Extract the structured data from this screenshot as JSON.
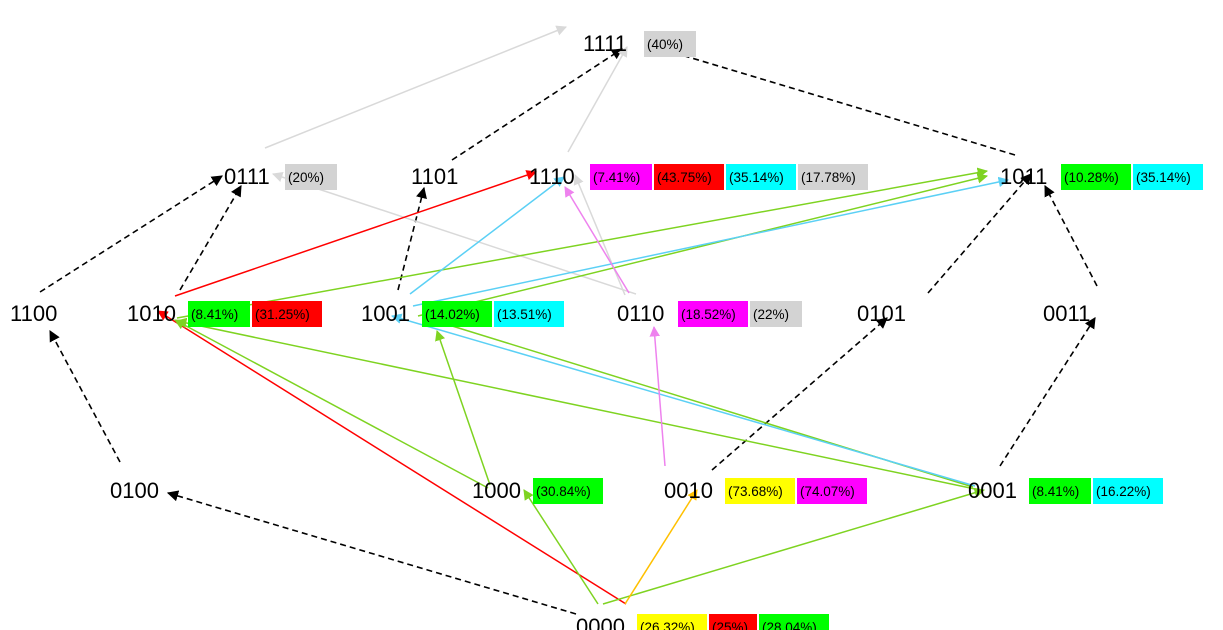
{
  "colors": {
    "black_dashed": "#000000",
    "gray": "#d9d9d9",
    "red": "#ff0000",
    "green": "#7ed321",
    "cyan": "#5bd0f5",
    "violet": "#ee82ee",
    "orange": "#ffc000",
    "badge_yellow": "#ffff00",
    "badge_red": "#ff0000",
    "badge_green": "#00ff00",
    "badge_magenta": "#ff00ff",
    "badge_cyan": "#00ffff",
    "badge_gray": "#d3d3d3"
  },
  "nodes": [
    {
      "id": "n1111",
      "label": "1111",
      "badges": [
        {
          "text": "(40%)",
          "color": "badge_gray"
        }
      ]
    },
    {
      "id": "n0111",
      "label": "0111",
      "badges": [
        {
          "text": "(20%)",
          "color": "badge_gray"
        }
      ]
    },
    {
      "id": "n1101",
      "label": "1101",
      "badges": []
    },
    {
      "id": "n1110",
      "label": "1110",
      "badges": [
        {
          "text": "(7.41%)",
          "color": "badge_magenta"
        },
        {
          "text": "(43.75%)",
          "color": "badge_red"
        },
        {
          "text": "(35.14%)",
          "color": "badge_cyan"
        },
        {
          "text": "(17.78%)",
          "color": "badge_gray"
        }
      ]
    },
    {
      "id": "n1011",
      "label": "1011",
      "badges": [
        {
          "text": "(10.28%)",
          "color": "badge_green"
        },
        {
          "text": "(35.14%)",
          "color": "badge_cyan"
        }
      ]
    },
    {
      "id": "n1100",
      "label": "1100",
      "badges": []
    },
    {
      "id": "n1010",
      "label": "1010",
      "badges": [
        {
          "text": "(8.41%)",
          "color": "badge_green"
        },
        {
          "text": "(31.25%)",
          "color": "badge_red"
        }
      ]
    },
    {
      "id": "n1001",
      "label": "1001",
      "badges": [
        {
          "text": "(14.02%)",
          "color": "badge_green"
        },
        {
          "text": "(13.51%)",
          "color": "badge_cyan"
        }
      ]
    },
    {
      "id": "n0110",
      "label": "0110",
      "badges": [
        {
          "text": "(18.52%)",
          "color": "badge_magenta"
        },
        {
          "text": "(22%)",
          "color": "badge_gray"
        }
      ]
    },
    {
      "id": "n0101",
      "label": "0101",
      "badges": []
    },
    {
      "id": "n0011",
      "label": "0011",
      "badges": []
    },
    {
      "id": "n0100",
      "label": "0100",
      "badges": []
    },
    {
      "id": "n1000",
      "label": "1000",
      "badges": [
        {
          "text": "(30.84%)",
          "color": "badge_green"
        }
      ]
    },
    {
      "id": "n0010",
      "label": "0010",
      "badges": [
        {
          "text": "(73.68%)",
          "color": "badge_yellow"
        },
        {
          "text": "(74.07%)",
          "color": "badge_magenta"
        }
      ]
    },
    {
      "id": "n0001",
      "label": "0001",
      "badges": [
        {
          "text": "(8.41%)",
          "color": "badge_green"
        },
        {
          "text": "(16.22%)",
          "color": "badge_cyan"
        }
      ]
    },
    {
      "id": "n0000",
      "label": "0000",
      "badges": [
        {
          "text": "(26.32%)",
          "color": "badge_yellow"
        },
        {
          "text": "(25%)",
          "color": "badge_red"
        },
        {
          "text": "(28.04%)",
          "color": "badge_green"
        }
      ]
    }
  ],
  "edges": [
    {
      "from": "n0000",
      "to": "n0100",
      "color": "black_dashed",
      "dashed": true
    },
    {
      "from": "n0100",
      "to": "n1100",
      "color": "black_dashed",
      "dashed": true
    },
    {
      "from": "n1100",
      "to": "n0111",
      "color": "black_dashed",
      "dashed": true
    },
    {
      "from": "n1010",
      "to": "n0111",
      "color": "black_dashed",
      "dashed": true
    },
    {
      "from": "n1001",
      "to": "n1101",
      "color": "black_dashed",
      "dashed": true
    },
    {
      "from": "n1101",
      "to": "n1111",
      "color": "black_dashed",
      "dashed": true
    },
    {
      "from": "n1011",
      "to": "n1111",
      "color": "black_dashed",
      "dashed": true
    },
    {
      "from": "n0010",
      "to": "n0101",
      "color": "black_dashed",
      "dashed": true
    },
    {
      "from": "n0101",
      "to": "n1011",
      "color": "black_dashed",
      "dashed": true
    },
    {
      "from": "n0001",
      "to": "n0011",
      "color": "black_dashed",
      "dashed": true
    },
    {
      "from": "n0011",
      "to": "n1011",
      "color": "black_dashed",
      "dashed": true
    },
    {
      "from": "n0111",
      "to": "n1111",
      "color": "gray",
      "dashed": false
    },
    {
      "from": "n1110",
      "to": "n1111",
      "color": "gray",
      "dashed": false
    },
    {
      "from": "n0110",
      "to": "n0111",
      "color": "gray",
      "dashed": false
    },
    {
      "from": "n0110",
      "to": "n1110",
      "color": "gray",
      "dashed": false
    },
    {
      "from": "n1010",
      "to": "n1110",
      "color": "red",
      "dashed": false
    },
    {
      "from": "n0000",
      "to": "n1010",
      "color": "red",
      "dashed": false
    },
    {
      "from": "n0000",
      "to": "n1000",
      "color": "green",
      "dashed": false
    },
    {
      "from": "n0000",
      "to": "n0001",
      "color": "green",
      "dashed": false
    },
    {
      "from": "n1000",
      "to": "n1010",
      "color": "green",
      "dashed": false
    },
    {
      "from": "n1000",
      "to": "n1001",
      "color": "green",
      "dashed": false
    },
    {
      "from": "n0001",
      "to": "n1010",
      "color": "green",
      "dashed": false
    },
    {
      "from": "n0001",
      "to": "n1001",
      "color": "green",
      "dashed": false
    },
    {
      "from": "n1010",
      "to": "n1011",
      "color": "green",
      "dashed": false
    },
    {
      "from": "n1001",
      "to": "n1011",
      "color": "green",
      "dashed": false
    },
    {
      "from": "n1001",
      "to": "n1110",
      "color": "cyan",
      "dashed": false
    },
    {
      "from": "n1001",
      "to": "n1011",
      "color": "cyan",
      "dashed": false
    },
    {
      "from": "n0001",
      "to": "n1001",
      "color": "cyan",
      "dashed": false
    },
    {
      "from": "n0010",
      "to": "n0110",
      "color": "violet",
      "dashed": false
    },
    {
      "from": "n0110",
      "to": "n1110",
      "color": "violet",
      "dashed": false
    },
    {
      "from": "n0000",
      "to": "n0010",
      "color": "orange",
      "dashed": false
    }
  ]
}
